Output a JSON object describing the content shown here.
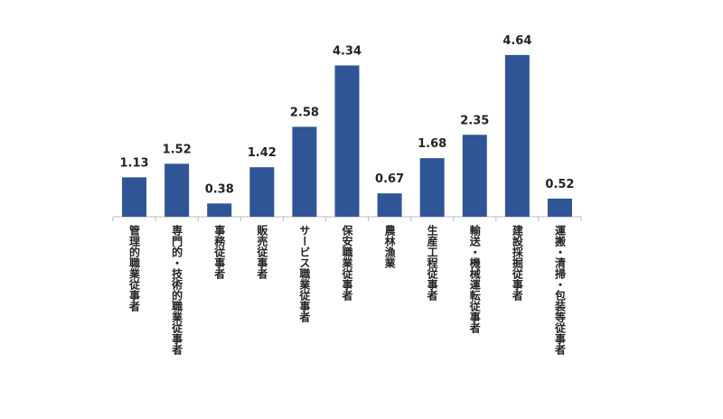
{
  "chart_data": {
    "type": "bar",
    "categories": [
      "管理的職業従事者",
      "専門的・技術的職業従事者",
      "事務従事者",
      "販売従事者",
      "サービス職業従事者",
      "保安職業従事者",
      "農林漁業",
      "生産工程従事者",
      "輸送・機械運転従事者",
      "建設採掘従事者",
      "運搬・清掃・包装等従事者"
    ],
    "values": [
      1.13,
      1.52,
      0.38,
      1.42,
      2.58,
      4.34,
      0.67,
      1.68,
      2.35,
      4.64,
      0.52
    ],
    "color": "#2f5597",
    "ylim": [
      0,
      5
    ],
    "grid": false
  }
}
